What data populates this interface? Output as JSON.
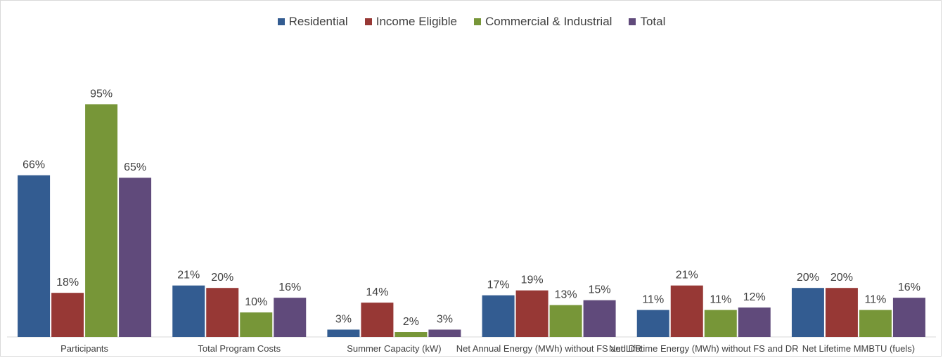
{
  "chart_data": {
    "type": "bar",
    "title": "",
    "xlabel": "",
    "ylabel": "",
    "ylim": [
      0,
      100
    ],
    "grid": false,
    "legend_position": "top",
    "categories": [
      "Participants",
      "Total Program Costs",
      "Summer Capacity (kW)",
      "Net Annual Energy (MWh) without FS and DR",
      "Net Lifetime Energy (MWh) without FS and DR",
      "Net Lifetime MMBTU (fuels)"
    ],
    "series": [
      {
        "name": "Residential",
        "color": "#335c91",
        "values": [
          66,
          21,
          3,
          17,
          11,
          20
        ],
        "labels": [
          "66%",
          "21%",
          "3%",
          "17%",
          "11%",
          "20%"
        ]
      },
      {
        "name": "Income Eligible",
        "color": "#973835",
        "values": [
          18,
          20,
          14,
          19,
          21,
          20
        ],
        "labels": [
          "18%",
          "20%",
          "14%",
          "19%",
          "21%",
          "20%"
        ]
      },
      {
        "name": "Commercial & Industrial",
        "color": "#779638",
        "values": [
          95,
          10,
          2,
          13,
          11,
          11
        ],
        "labels": [
          "95%",
          "10%",
          "2%",
          "13%",
          "11%",
          "11%"
        ]
      },
      {
        "name": "Total",
        "color": "#604a7b",
        "values": [
          65,
          16,
          3,
          15,
          12,
          16
        ],
        "labels": [
          "65%",
          "16%",
          "3%",
          "15%",
          "12%",
          "16%"
        ]
      }
    ]
  }
}
